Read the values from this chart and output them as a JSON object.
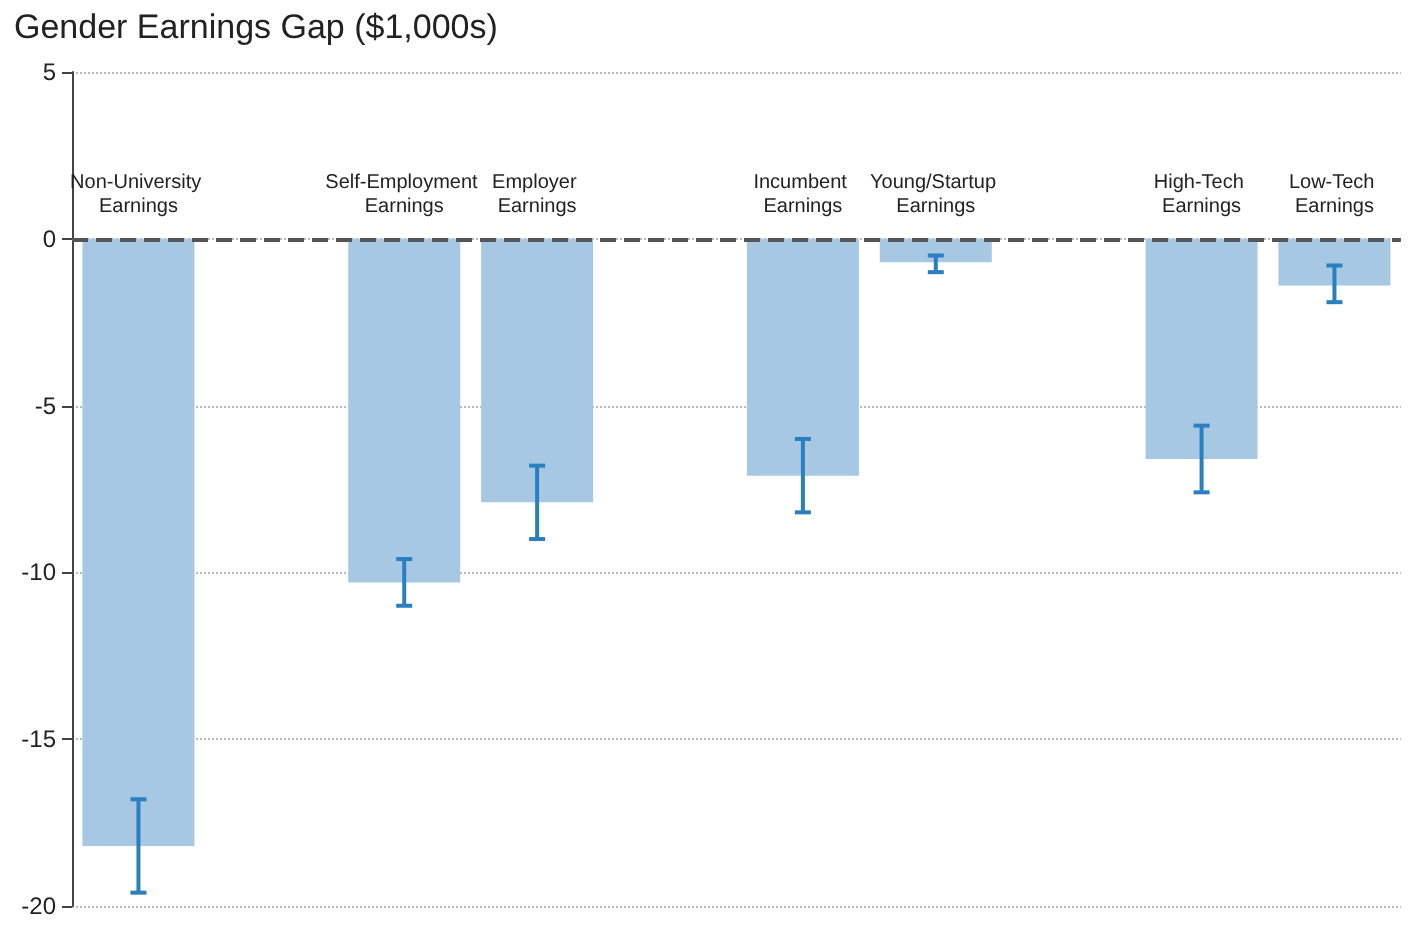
{
  "chart_data": {
    "type": "bar",
    "title": "Gender Earnings Gap ($1,000s)",
    "categories": [
      "Non-University Earnings",
      null,
      "Self-Employment Earnings",
      "Employer Earnings",
      null,
      "Incumbent Earnings",
      "Young/Startup Earnings",
      null,
      "High-Tech Earnings",
      "Low-Tech Earnings"
    ],
    "values": [
      -18.2,
      null,
      -10.3,
      -7.9,
      null,
      -7.1,
      -0.7,
      null,
      -6.6,
      -1.4
    ],
    "errors": [
      [
        -19.6,
        -16.8
      ],
      null,
      [
        -11.0,
        -9.6
      ],
      [
        -9.0,
        -6.8
      ],
      null,
      [
        -8.2,
        -6.0
      ],
      [
        -1.0,
        -0.5
      ],
      null,
      [
        -7.6,
        -5.6
      ],
      [
        -1.9,
        -0.8
      ]
    ],
    "color": "#a6c8e2",
    "ylim": [
      -20,
      5
    ],
    "yticks": [
      -20,
      -15,
      -10,
      -5,
      0,
      5
    ],
    "grid": "y",
    "ref_lines": [
      {
        "axis": "y",
        "value": 0,
        "color": "#555555",
        "line_style": "dashed"
      }
    ]
  }
}
